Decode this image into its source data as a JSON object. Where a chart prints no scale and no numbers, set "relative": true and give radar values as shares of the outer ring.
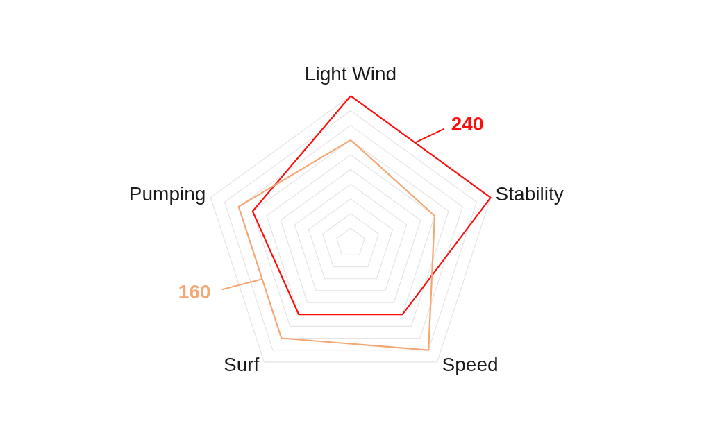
{
  "chart_data": {
    "type": "radar",
    "relative": true,
    "grid": true,
    "categories": [
      "Light Wind",
      "Stability",
      "Speed",
      "Surf",
      "Pumping"
    ],
    "series": [
      {
        "name": "240",
        "color": "#ff0d0d",
        "values": [
          1,
          1,
          0.6,
          0.6,
          0.7
        ]
      },
      {
        "name": "160",
        "color": "#f5a673",
        "values": [
          0.7,
          0.6,
          0.9,
          0.8,
          0.8
        ]
      }
    ]
  }
}
